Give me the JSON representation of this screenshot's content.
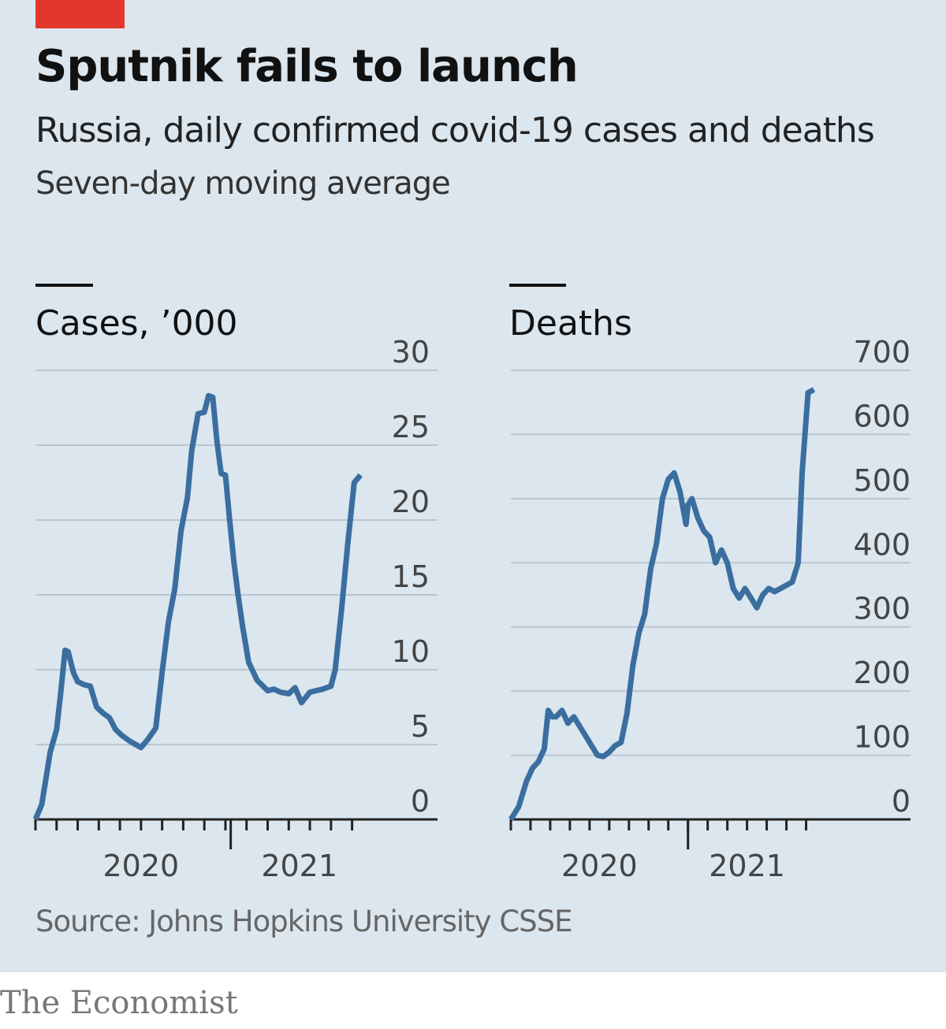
{
  "header": {
    "title": "Sputnik fails to launch",
    "subtitle": "Russia, daily confirmed covid-19 cases and deaths",
    "note": "Seven-day moving average"
  },
  "footer": {
    "source": "Source: Johns Hopkins University CSSE",
    "brand": "The Economist"
  },
  "colors": {
    "background": "#dce6ee",
    "accent": "#e3372e",
    "line": "#3a6e9f",
    "grid": "#b9c6d2"
  },
  "chart_data": [
    {
      "type": "line",
      "title": "Cases, ’000",
      "ylim": [
        0,
        30
      ],
      "yticks": [
        0,
        5,
        10,
        15,
        20,
        25,
        30
      ],
      "xlim": [
        0,
        15.5
      ],
      "xticks": [
        {
          "label": "2020",
          "x": 5
        },
        {
          "label": "2021",
          "x": 12.5
        }
      ],
      "year_break": 9.25,
      "monthly_ticks": [
        0,
        1,
        2,
        3,
        4,
        5,
        6,
        7,
        8,
        9,
        10,
        11,
        12,
        13,
        14,
        15
      ],
      "series": [
        {
          "name": "Cases",
          "x": [
            0,
            0.3,
            0.7,
            1.0,
            1.2,
            1.4,
            1.55,
            1.8,
            2.0,
            2.3,
            2.6,
            2.9,
            3.2,
            3.5,
            3.8,
            4.1,
            4.5,
            5.0,
            5.3,
            5.7,
            6.0,
            6.3,
            6.6,
            6.9,
            7.2,
            7.4,
            7.7,
            8.0,
            8.2,
            8.4,
            8.6,
            8.8,
            9.0,
            9.2,
            9.4,
            9.6,
            9.8,
            10.1,
            10.5,
            11.0,
            11.3,
            11.6,
            12.0,
            12.3,
            12.6,
            13.0,
            13.3,
            13.6,
            14.0,
            14.2,
            14.5,
            14.8,
            15.1,
            15.4
          ],
          "values": [
            0,
            1,
            4.5,
            6,
            8.5,
            11.3,
            11.2,
            9.8,
            9.2,
            9.0,
            8.9,
            7.5,
            7.1,
            6.8,
            6.0,
            5.6,
            5.2,
            4.8,
            5.3,
            6.1,
            9.8,
            13.2,
            15.4,
            19.3,
            21.5,
            24.6,
            27.1,
            27.2,
            28.3,
            28.2,
            25.2,
            23.1,
            23.0,
            20.0,
            17.2,
            15.0,
            13.0,
            10.5,
            9.3,
            8.6,
            8.7,
            8.5,
            8.4,
            8.8,
            7.8,
            8.5,
            8.6,
            8.7,
            8.9,
            10.0,
            14.0,
            18.5,
            22.5,
            23.0
          ]
        }
      ]
    },
    {
      "type": "line",
      "title": "Deaths",
      "ylim": [
        0,
        700
      ],
      "yticks": [
        0,
        100,
        200,
        300,
        400,
        500,
        600,
        700
      ],
      "xlim": [
        0,
        15.5
      ],
      "xticks": [
        {
          "label": "2020",
          "x": 4.5
        },
        {
          "label": "2021",
          "x": 12
        }
      ],
      "year_break": 9,
      "monthly_ticks": [
        0,
        1,
        2,
        3,
        4,
        5,
        6,
        7,
        8,
        9,
        10,
        11,
        12,
        13,
        14,
        15
      ],
      "series": [
        {
          "name": "Deaths",
          "x": [
            0,
            0.4,
            0.8,
            1.1,
            1.4,
            1.7,
            1.9,
            2.1,
            2.3,
            2.6,
            2.9,
            3.2,
            3.5,
            3.8,
            4.1,
            4.4,
            4.7,
            5.0,
            5.3,
            5.6,
            5.9,
            6.2,
            6.5,
            6.8,
            7.1,
            7.4,
            7.7,
            8.0,
            8.3,
            8.6,
            8.9,
            9.0,
            9.2,
            9.5,
            9.8,
            10.1,
            10.4,
            10.7,
            11.0,
            11.3,
            11.6,
            11.9,
            12.2,
            12.5,
            12.8,
            13.1,
            13.4,
            13.7,
            14.0,
            14.3,
            14.6,
            14.8,
            15.1,
            15.4
          ],
          "values": [
            0,
            20,
            60,
            80,
            90,
            110,
            170,
            160,
            160,
            170,
            150,
            160,
            145,
            130,
            115,
            100,
            98,
            105,
            115,
            120,
            165,
            240,
            290,
            320,
            390,
            430,
            500,
            530,
            540,
            510,
            460,
            490,
            500,
            470,
            450,
            440,
            400,
            420,
            400,
            360,
            345,
            360,
            345,
            330,
            350,
            360,
            355,
            360,
            365,
            370,
            400,
            540,
            665,
            670
          ]
        }
      ]
    }
  ]
}
